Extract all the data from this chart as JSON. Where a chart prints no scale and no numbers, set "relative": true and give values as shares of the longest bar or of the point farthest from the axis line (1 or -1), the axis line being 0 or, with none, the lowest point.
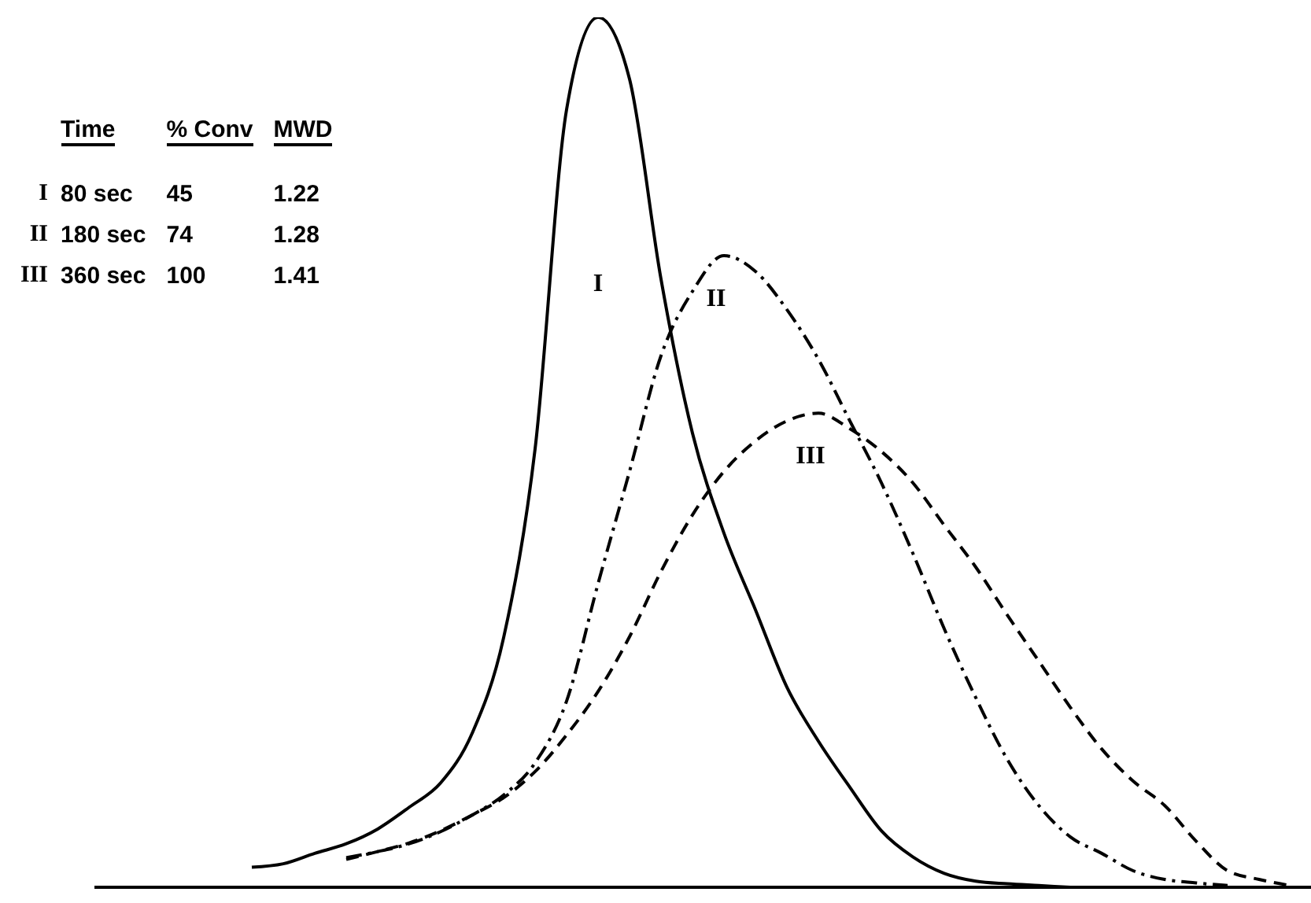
{
  "chart_data": {
    "type": "line",
    "relative": true,
    "legend": false,
    "grid": false,
    "categories": [
      null,
      null,
      null,
      null,
      null,
      null,
      null,
      null,
      null,
      null,
      null,
      null,
      null,
      null,
      null,
      null,
      null,
      null,
      null,
      null,
      null,
      null,
      null,
      null,
      null,
      null,
      null,
      null,
      null,
      null,
      null,
      null,
      null,
      null,
      null
    ],
    "series": [
      {
        "name": "I",
        "color": "#000000",
        "line_style": "solid",
        "values": [
          null,
          0.023,
          0.027,
          0.039,
          0.05,
          0.067,
          0.092,
          0.12,
          0.177,
          0.287,
          0.504,
          0.894,
          1,
          0.929,
          0.699,
          0.522,
          0.407,
          0.319,
          0.23,
          0.168,
          0.115,
          0.065,
          0.035,
          0.016,
          0.007,
          0.004,
          0.002,
          0,
          null,
          null,
          null,
          null,
          null,
          null,
          null
        ]
      },
      {
        "name": "II",
        "color": "#000000",
        "line_style": "dashdot",
        "values": [
          null,
          null,
          null,
          null,
          0.034,
          0.041,
          0.05,
          0.064,
          0.083,
          0.106,
          0.143,
          0.214,
          0.349,
          0.478,
          0.611,
          0.685,
          0.726,
          0.708,
          0.664,
          0.607,
          0.536,
          0.465,
          0.384,
          0.297,
          0.218,
          0.147,
          0.094,
          0.058,
          0.039,
          0.019,
          0.009,
          0.005,
          0.002,
          null,
          null
        ]
      },
      {
        "name": "III",
        "color": "#000000",
        "line_style": "dashed",
        "values": [
          null,
          null,
          null,
          null,
          0.032,
          0.041,
          0.051,
          0.065,
          0.083,
          0.103,
          0.133,
          0.175,
          0.225,
          0.288,
          0.363,
          0.428,
          0.478,
          0.513,
          0.536,
          0.545,
          0.527,
          0.501,
          0.465,
          0.416,
          0.368,
          0.313,
          0.26,
          0.207,
          0.159,
          0.122,
          0.094,
          0.053,
          0.019,
          0.009,
          0.002
        ]
      }
    ],
    "annotations": [
      "Time",
      "% Conv",
      "MWD",
      "80 sec",
      "45",
      "1.22",
      "180 sec",
      "74",
      "1.28",
      "360 sec",
      "100",
      "1.41"
    ]
  }
}
